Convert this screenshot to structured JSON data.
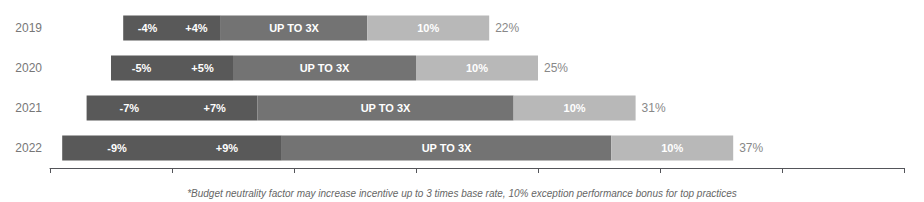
{
  "chart_data": {
    "type": "bar",
    "orientation": "horizontal",
    "stacked": true,
    "data_labels": true,
    "grid": false,
    "tick_labels": "y",
    "categories": [
      "2019",
      "2020",
      "2021",
      "2022"
    ],
    "series": [
      {
        "color": "#595959",
        "values": [
          -4,
          -5,
          -7,
          -9
        ],
        "value_labels": [
          "-4%",
          "-5%",
          "-7%",
          "-9%"
        ]
      },
      {
        "color": "#595959",
        "values": [
          4,
          5,
          7,
          9
        ],
        "value_labels": [
          "+4%",
          "+5%",
          "+7%",
          "+9%"
        ]
      },
      {
        "color": "#737373",
        "values": [
          12,
          15,
          21,
          27
        ],
        "value_labels": [
          "UP TO 3X",
          "UP TO 3X",
          "UP TO 3X",
          "UP TO 3X"
        ]
      },
      {
        "color": "#b8b8b8",
        "values": [
          10,
          10,
          10,
          10
        ],
        "value_labels": [
          "10%",
          "10%",
          "10%",
          "10%"
        ]
      }
    ],
    "annotations": [
      {
        "category": "2019",
        "text": "22%"
      },
      {
        "category": "2020",
        "text": "25%"
      },
      {
        "category": "2021",
        "text": "31%"
      },
      {
        "category": "2022",
        "text": "37%"
      },
      {
        "text": "*Budget neutrality factor may increase incentive up to 3 times base rate, 10% exception performance bonus for top practices"
      }
    ],
    "xlim": [
      -10,
      60
    ],
    "xticks": [
      -10,
      0,
      10,
      20,
      30,
      40,
      50,
      60
    ]
  }
}
